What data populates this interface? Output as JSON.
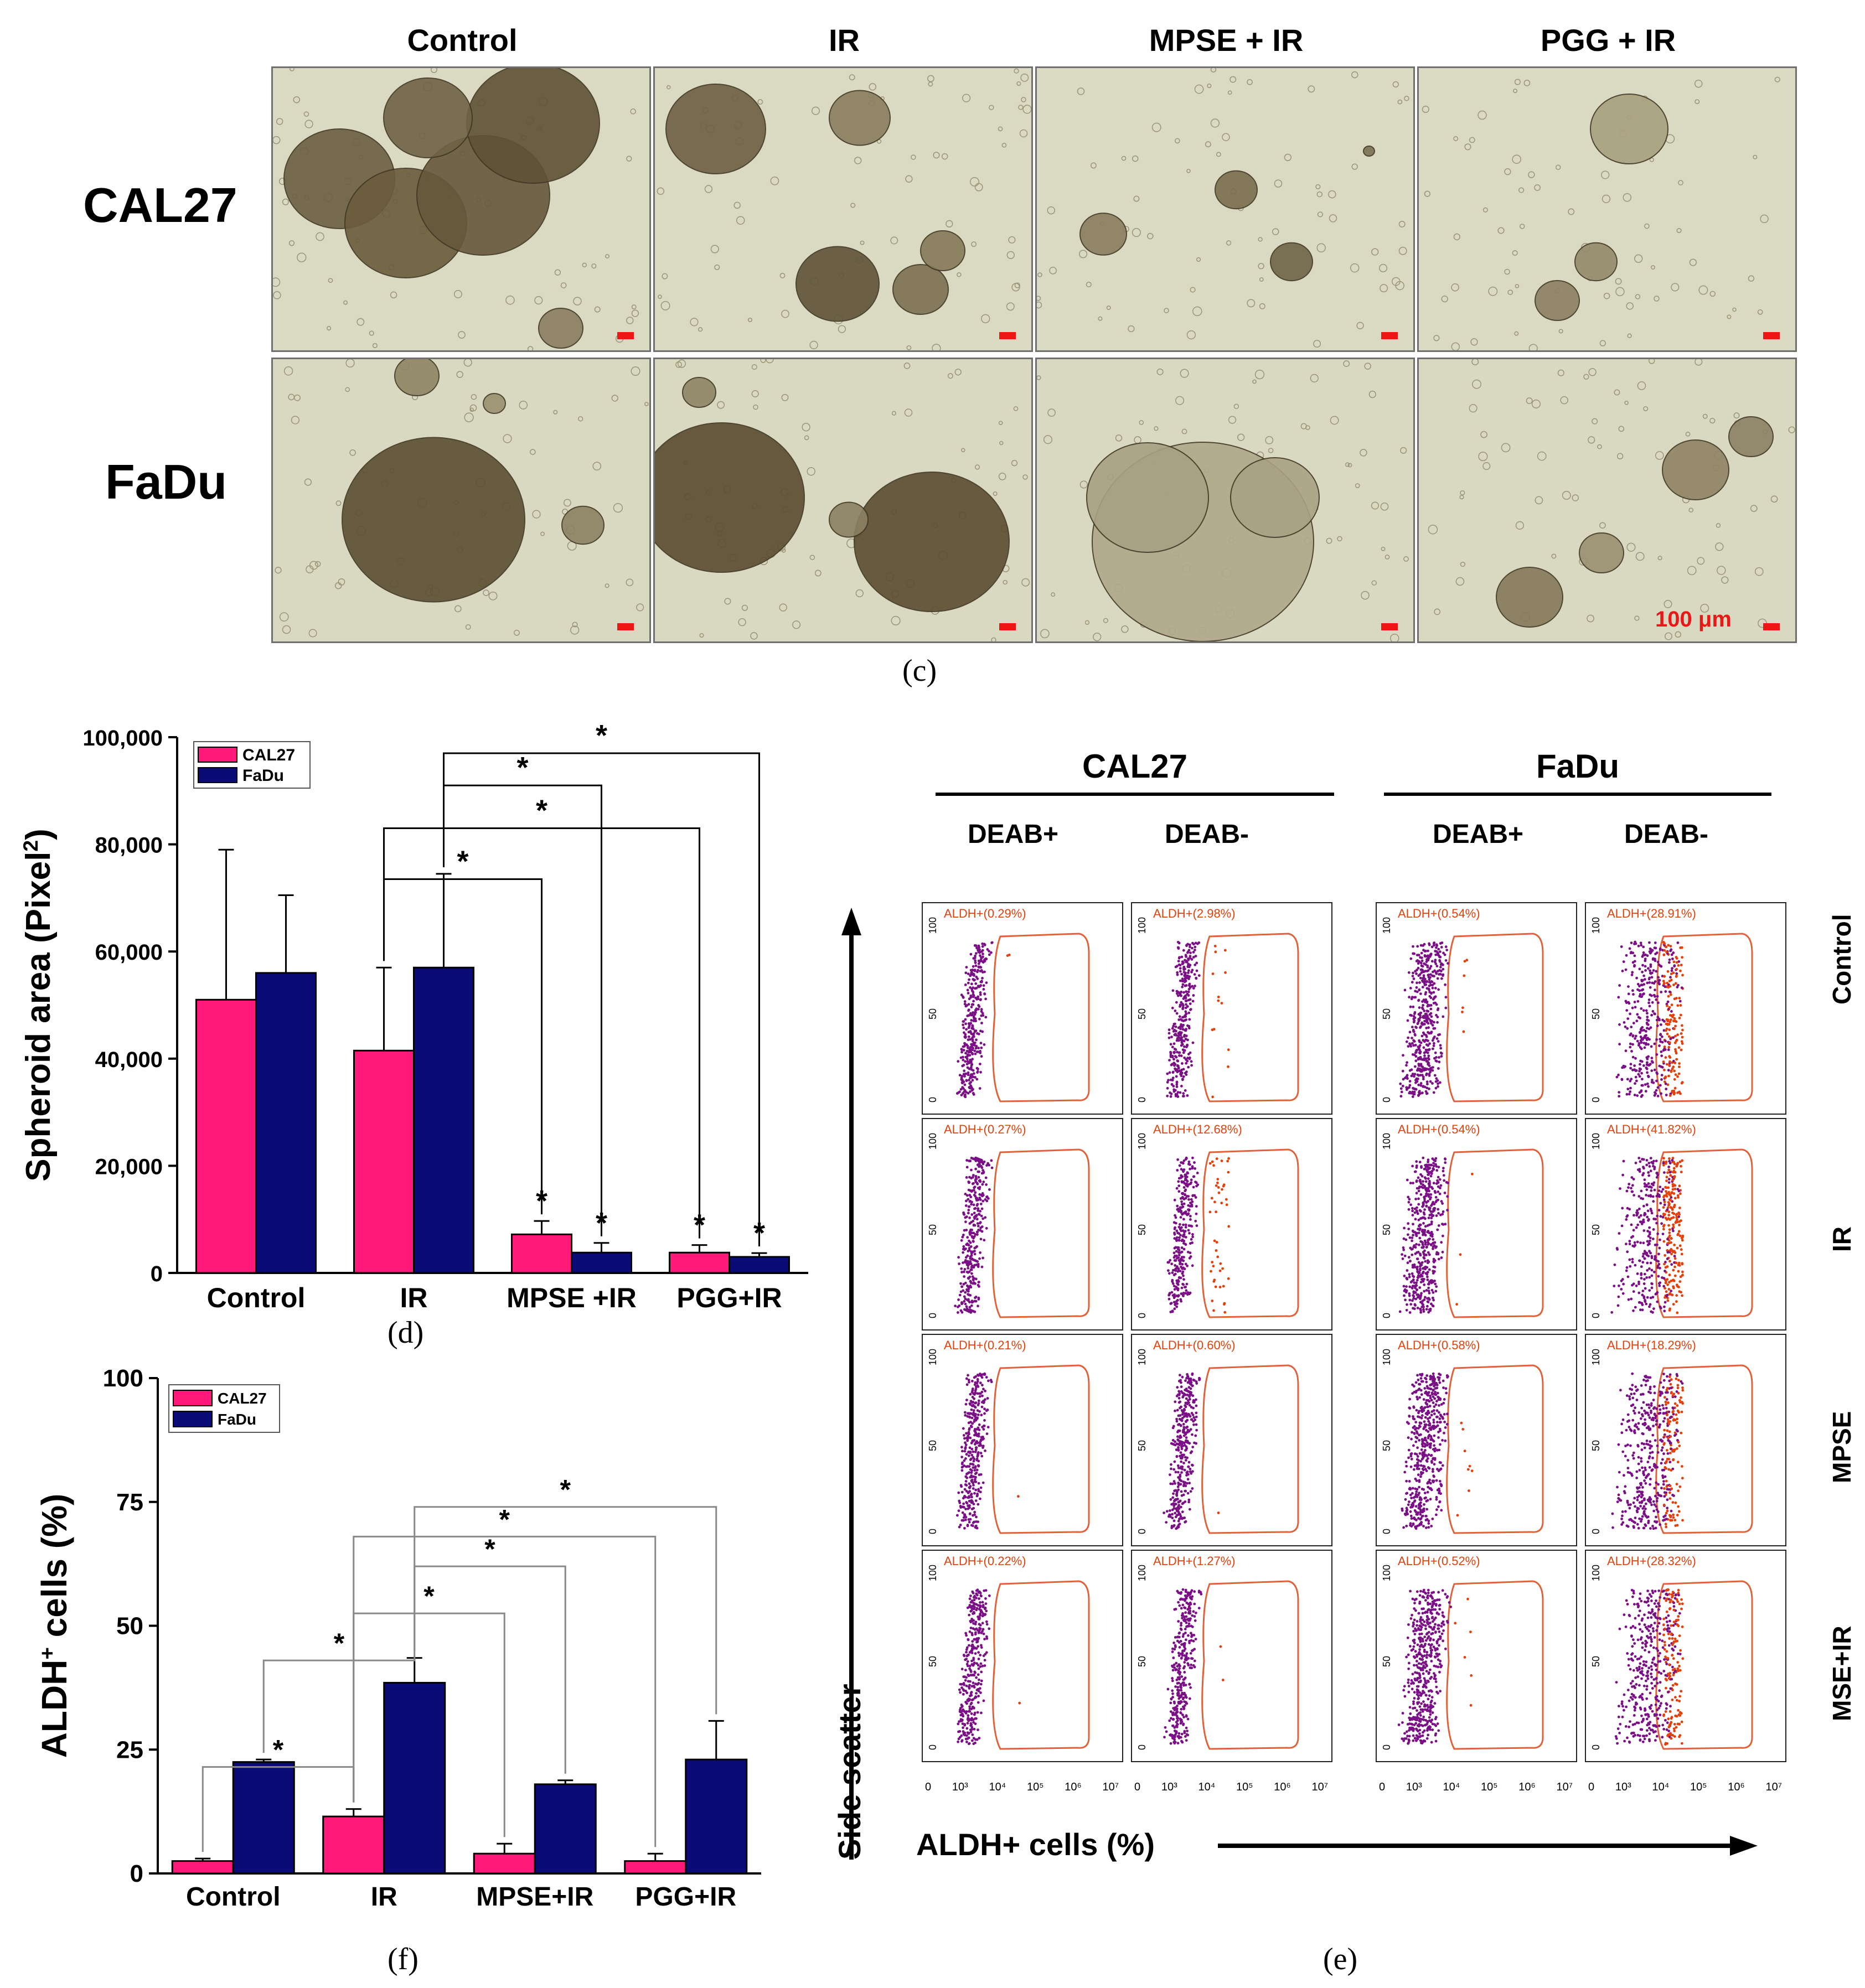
{
  "panel_c": {
    "caption": "(c)",
    "column_headers": [
      "Control",
      "IR",
      "MPSE + IR",
      "PGG + IR"
    ],
    "row_labels": [
      "CAL27",
      "FaDu"
    ],
    "scale_bar_label": "100 μm"
  },
  "panel_d": {
    "caption": "(d)",
    "significance_marker": "*",
    "chart_data": {
      "type": "bar",
      "ylabel": "Spheroid area (Pixel²)",
      "ylabel_parts": {
        "main": "Spheroid area (Pixel",
        "sup": "2",
        "tail": ")"
      },
      "categories": [
        "Control",
        "IR",
        "MPSE +IR",
        "PGG+IR"
      ],
      "ylim": [
        0,
        100000
      ],
      "y_ticks": [
        "0",
        "20,000",
        "40,000",
        "60,000",
        "80,000",
        "100,000"
      ],
      "legend_position": "top-left",
      "series": [
        {
          "name": "CAL27",
          "color": "#ff1a7a",
          "values": [
            51000,
            41500,
            7200,
            3800
          ],
          "errors": [
            28000,
            15500,
            2500,
            1400
          ]
        },
        {
          "name": "FaDu",
          "color": "#0b0b78",
          "values": [
            56000,
            57000,
            3800,
            3000
          ],
          "errors": [
            14500,
            17500,
            1800,
            700
          ]
        }
      ]
    }
  },
  "panel_f": {
    "caption": "(f)",
    "significance_marker": "*",
    "chart_data": {
      "type": "bar",
      "ylabel": "ALDH⁺ cells (%)",
      "ylabel_parts": {
        "main": "ALDH",
        "sup": "+",
        "tail": " cells (%)"
      },
      "categories": [
        "Control",
        "IR",
        "MPSE+IR",
        "PGG+IR"
      ],
      "ylim": [
        0,
        100
      ],
      "y_ticks": [
        "0",
        "25",
        "50",
        "75",
        "100"
      ],
      "legend_position": "top-left",
      "series": [
        {
          "name": "CAL27",
          "color": "#ff1a7a",
          "values": [
            2.5,
            11.5,
            4.0,
            2.5
          ],
          "errors": [
            0.5,
            1.5,
            2.0,
            1.5
          ]
        },
        {
          "name": "FaDu",
          "color": "#0b0b78",
          "values": [
            22.5,
            38.5,
            18.0,
            23.0
          ],
          "errors": [
            0.5,
            5.0,
            0.8,
            7.8
          ]
        }
      ]
    }
  },
  "panel_e": {
    "caption": "(e)",
    "cell_lines": [
      "CAL27",
      "FaDu"
    ],
    "column_headers": [
      "DEAB+",
      "DEAB-",
      "DEAB+",
      "DEAB-"
    ],
    "row_labels": [
      "Control",
      "IR",
      "MPSE",
      "MSE+IR"
    ],
    "gate_labels": [
      [
        "ALDH+(0.29%)",
        "ALDH+(2.98%)",
        "ALDH+(0.54%)",
        "ALDH+(28.91%)"
      ],
      [
        "ALDH+(0.27%)",
        "ALDH+(12.68%)",
        "ALDH+(0.54%)",
        "ALDH+(41.82%)"
      ],
      [
        "ALDH+(0.21%)",
        "ALDH+(0.60%)",
        "ALDH+(0.58%)",
        "ALDH+(18.29%)"
      ],
      [
        "ALDH+(0.22%)",
        "ALDH+(1.27%)",
        "ALDH+(0.52%)",
        "ALDH+(28.32%)"
      ]
    ],
    "gated_fraction_percent": [
      [
        0.29,
        2.98,
        0.54,
        28.91
      ],
      [
        0.27,
        12.68,
        0.54,
        41.82
      ],
      [
        0.21,
        0.6,
        0.58,
        18.29
      ],
      [
        0.22,
        1.27,
        0.52,
        28.32
      ]
    ],
    "y_axis_title": "Side scatter",
    "x_axis_title": "ALDH+ cells (%)",
    "y_ticks": [
      "100",
      "50",
      "0"
    ],
    "x_ticks": [
      "0",
      "10³",
      "10⁴",
      "10⁵",
      "10⁶",
      "10⁷"
    ],
    "colors": {
      "population": "#7a0f86",
      "gated": "#e4400b",
      "gate_outline": "#e0623a"
    }
  }
}
